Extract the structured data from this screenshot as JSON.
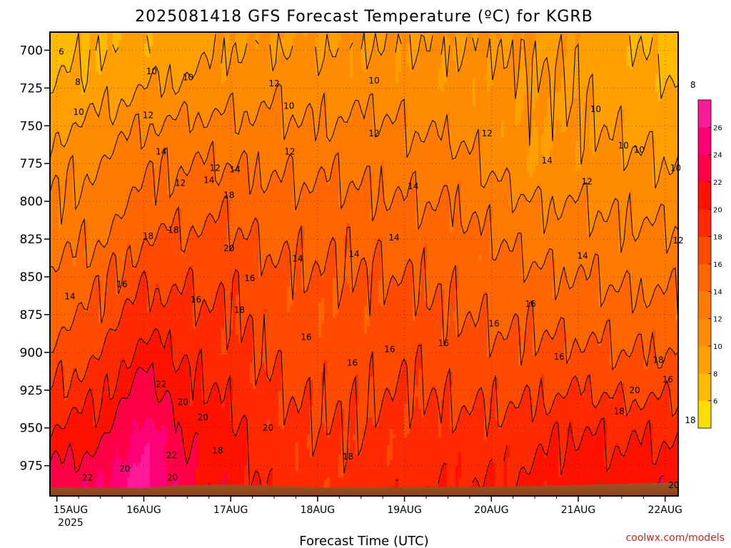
{
  "chart_data": {
    "type": "heatmap",
    "title": "2025081418 GFS Forecast Temperature (ºC) for KGRB",
    "xlabel": "Forecast Time (UTC)",
    "ylabel": "",
    "credit": "coolwx.com/models",
    "x_ticks": [
      "15AUG",
      "16AUG",
      "17AUG",
      "18AUG",
      "19AUG",
      "20AUG",
      "21AUG",
      "22AUG"
    ],
    "x_year_label": "2025",
    "xlim_days": [
      -0.08,
      7.15
    ],
    "y_ticks": [
      700,
      725,
      750,
      775,
      800,
      825,
      850,
      875,
      900,
      925,
      950,
      975
    ],
    "ylim": [
      688,
      995
    ],
    "colorbar": {
      "levels": [
        4,
        6,
        8,
        10,
        12,
        14,
        16,
        18,
        20,
        22,
        24,
        26,
        28
      ],
      "tick_labels": [
        6,
        8,
        10,
        12,
        14,
        16,
        18,
        20,
        22,
        24,
        26
      ],
      "colors": [
        "#ffdd00",
        "#ffbb00",
        "#ff9f00",
        "#ff8c00",
        "#ff7a00",
        "#ff6600",
        "#ff4a00",
        "#ff2a00",
        "#ff1100",
        "#ff0044",
        "#ff0077",
        "#ff1a99"
      ]
    },
    "ground_color": "#a0522d",
    "temperature_profiles": {
      "pressure_levels": [
        700,
        725,
        750,
        775,
        800,
        825,
        850,
        875,
        900,
        925,
        950,
        975,
        990
      ],
      "columns": [
        {
          "day": -0.08,
          "temps": [
            7,
            8,
            9.5,
            11,
            12,
            13,
            14,
            15,
            16.5,
            18,
            20,
            22,
            23
          ]
        },
        {
          "day": 0.5,
          "temps": [
            8,
            9,
            10.5,
            12,
            13,
            14,
            15.5,
            16.5,
            18,
            19.5,
            21,
            23,
            24
          ]
        },
        {
          "day": 1.0,
          "temps": [
            8.5,
            10,
            12,
            13.5,
            14.5,
            16,
            17.5,
            19,
            21,
            23,
            25,
            26.5,
            27
          ]
        },
        {
          "day": 1.5,
          "temps": [
            9,
            10.5,
            12.5,
            14,
            15,
            16.5,
            17.5,
            18.5,
            19.5,
            20.5,
            21.5,
            22,
            22.5
          ]
        },
        {
          "day": 2.0,
          "temps": [
            10,
            11,
            12.5,
            14,
            15.5,
            16.5,
            17.5,
            18,
            18.5,
            19.5,
            20.5,
            21,
            21
          ]
        },
        {
          "day": 2.5,
          "temps": [
            10,
            11.5,
            12.5,
            13.5,
            14.5,
            15.5,
            16.5,
            17,
            17.5,
            18,
            18.5,
            19,
            19.5
          ]
        },
        {
          "day": 3.0,
          "temps": [
            10,
            11,
            12,
            13.5,
            14.5,
            15.5,
            16,
            16.5,
            17,
            17.5,
            18,
            18.5,
            18.5
          ]
        },
        {
          "day": 3.5,
          "temps": [
            10,
            11,
            12.5,
            13.5,
            14.5,
            15.5,
            16,
            16.5,
            17,
            17.5,
            18,
            18.5,
            19
          ]
        },
        {
          "day": 4.0,
          "temps": [
            10,
            11,
            12,
            13,
            14,
            15,
            16,
            17,
            17.5,
            18,
            18.5,
            19,
            19.5
          ]
        },
        {
          "day": 4.5,
          "temps": [
            10,
            10.5,
            11.5,
            13,
            14,
            15,
            15.5,
            16,
            17,
            17.5,
            18.5,
            19.5,
            20
          ]
        },
        {
          "day": 5.0,
          "temps": [
            10,
            10.5,
            11,
            11.5,
            13,
            14,
            15,
            15.5,
            16.5,
            17.5,
            18.5,
            19.5,
            20
          ]
        },
        {
          "day": 5.5,
          "temps": [
            10,
            10,
            10,
            10,
            12,
            13,
            14.5,
            15.5,
            16.5,
            17.5,
            19,
            20,
            20.5
          ]
        },
        {
          "day": 6.0,
          "temps": [
            9.5,
            9.5,
            10,
            10.5,
            12,
            13,
            14,
            15,
            16.5,
            18,
            20,
            21,
            21.5
          ]
        },
        {
          "day": 6.5,
          "temps": [
            8.5,
            9,
            9.5,
            10.5,
            11.5,
            12.5,
            13.5,
            15,
            16,
            17.5,
            19.5,
            20.5,
            21
          ]
        },
        {
          "day": 7.15,
          "temps": [
            7,
            8,
            9,
            10,
            11,
            12.5,
            13.5,
            14.5,
            16,
            17.5,
            19.5,
            21,
            22
          ]
        }
      ]
    },
    "contour_labels": [
      {
        "text": "6",
        "day": 0.05,
        "p": 701
      },
      {
        "text": "8",
        "day": 0.24,
        "p": 721
      },
      {
        "text": "10",
        "day": 0.25,
        "p": 741
      },
      {
        "text": "10",
        "day": 1.09,
        "p": 714
      },
      {
        "text": "10",
        "day": 1.51,
        "p": 718
      },
      {
        "text": "12",
        "day": 1.05,
        "p": 743
      },
      {
        "text": "14",
        "day": 1.2,
        "p": 767
      },
      {
        "text": "12",
        "day": 1.42,
        "p": 788
      },
      {
        "text": "14",
        "day": 1.75,
        "p": 786
      },
      {
        "text": "12",
        "day": 1.82,
        "p": 778
      },
      {
        "text": "14",
        "day": 2.05,
        "p": 779
      },
      {
        "text": "18",
        "day": 1.98,
        "p": 796
      },
      {
        "text": "18",
        "day": 1.34,
        "p": 819
      },
      {
        "text": "18",
        "day": 1.05,
        "p": 823
      },
      {
        "text": "20",
        "day": 1.98,
        "p": 831
      },
      {
        "text": "16",
        "day": 0.75,
        "p": 855
      },
      {
        "text": "14",
        "day": 0.15,
        "p": 863
      },
      {
        "text": "16",
        "day": 2.22,
        "p": 851
      },
      {
        "text": "16",
        "day": 1.6,
        "p": 865
      },
      {
        "text": "18",
        "day": 2.1,
        "p": 872
      },
      {
        "text": "12",
        "day": 2.5,
        "p": 722
      },
      {
        "text": "10",
        "day": 2.67,
        "p": 737
      },
      {
        "text": "12",
        "day": 2.68,
        "p": 767
      },
      {
        "text": "10",
        "day": 3.65,
        "p": 720
      },
      {
        "text": "12",
        "day": 3.65,
        "p": 755
      },
      {
        "text": "14",
        "day": 2.77,
        "p": 838
      },
      {
        "text": "14",
        "day": 3.42,
        "p": 835
      },
      {
        "text": "14",
        "day": 4.1,
        "p": 790
      },
      {
        "text": "14",
        "day": 3.88,
        "p": 824
      },
      {
        "text": "16",
        "day": 2.87,
        "p": 890
      },
      {
        "text": "16",
        "day": 3.4,
        "p": 907
      },
      {
        "text": "16",
        "day": 3.83,
        "p": 898
      },
      {
        "text": "16",
        "day": 4.45,
        "p": 894
      },
      {
        "text": "16",
        "day": 5.03,
        "p": 881
      },
      {
        "text": "16",
        "day": 5.78,
        "p": 903
      },
      {
        "text": "16",
        "day": 7.03,
        "p": 918
      },
      {
        "text": "16",
        "day": 5.45,
        "p": 868
      },
      {
        "text": "12",
        "day": 4.95,
        "p": 755
      },
      {
        "text": "14",
        "day": 5.64,
        "p": 773
      },
      {
        "text": "10",
        "day": 6.2,
        "p": 739
      },
      {
        "text": "12",
        "day": 6.1,
        "p": 787
      },
      {
        "text": "14",
        "day": 6.05,
        "p": 836
      },
      {
        "text": "10",
        "day": 6.52,
        "p": 763
      },
      {
        "text": "10",
        "day": 7.12,
        "p": 778
      },
      {
        "text": "10",
        "day": 6.7,
        "p": 766
      },
      {
        "text": "8",
        "day": 7.32,
        "p": 723
      },
      {
        "text": "12",
        "day": 7.15,
        "p": 826
      },
      {
        "text": "14",
        "day": 7.48,
        "p": 860
      },
      {
        "text": "18",
        "day": 6.92,
        "p": 905
      },
      {
        "text": "18",
        "day": 6.47,
        "p": 939
      },
      {
        "text": "18",
        "day": 7.29,
        "p": 945
      },
      {
        "text": "20",
        "day": 6.65,
        "p": 925
      },
      {
        "text": "20",
        "day": 7.1,
        "p": 988
      },
      {
        "text": "18",
        "day": 3.35,
        "p": 969
      },
      {
        "text": "20",
        "day": 1.45,
        "p": 933
      },
      {
        "text": "20",
        "day": 1.68,
        "p": 943
      },
      {
        "text": "20",
        "day": 2.43,
        "p": 950
      },
      {
        "text": "22",
        "day": 1.2,
        "p": 921
      },
      {
        "text": "22",
        "day": 1.32,
        "p": 968
      },
      {
        "text": "20",
        "day": 1.33,
        "p": 983
      },
      {
        "text": "18",
        "day": 1.85,
        "p": 965
      },
      {
        "text": "20",
        "day": 0.78,
        "p": 977
      },
      {
        "text": "22",
        "day": 0.35,
        "p": 983
      }
    ]
  }
}
